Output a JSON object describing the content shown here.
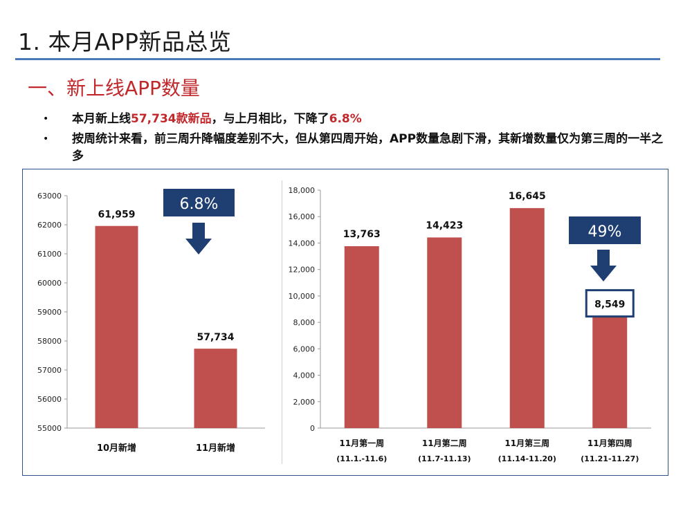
{
  "page": {
    "title": "1. 本月APP新品总览",
    "section_heading": "一、新上线APP数量",
    "bullet_marker": "•",
    "bullets": [
      {
        "prefix": "本月新上线",
        "hl1": "57,734款新品",
        "middle": "，与上月相比，下降了",
        "hl2": "6.8%"
      },
      {
        "text": "按周统计来看，前三周升降幅度差别不大，但从第四周开始，APP数量急剧下滑，其新增数量仅为第三周的一半之多"
      }
    ]
  },
  "colors": {
    "bar": "#c0504d",
    "callout": "#1f3f73",
    "accent": "#c0282c",
    "frame": "#2d4f8a"
  },
  "chart_data": [
    {
      "type": "bar",
      "categories": [
        "10月新增",
        "11月新增"
      ],
      "values": [
        61959,
        57734
      ],
      "value_labels": [
        "61,959",
        "57,734"
      ],
      "ylim": [
        55000,
        63000
      ],
      "yticks": [
        55000,
        56000,
        57000,
        58000,
        59000,
        60000,
        61000,
        62000,
        63000
      ],
      "ytick_labels": [
        "55000",
        "56000",
        "57000",
        "58000",
        "59000",
        "60000",
        "61000",
        "62000",
        "63000"
      ],
      "callout": {
        "text": "6.8%",
        "icon": "down-arrow-icon"
      }
    },
    {
      "type": "bar",
      "categories": [
        "11月第一周",
        "11月第二周",
        "11月第三周",
        "11月第四周"
      ],
      "subcategories": [
        "(11.1.-11.6)",
        "(11.7-11.13)",
        "(11.14-11.20)",
        "(11.21-11.27)"
      ],
      "values": [
        13763,
        14423,
        16645,
        8549
      ],
      "value_labels": [
        "13,763",
        "14,423",
        "16,645",
        "8,549"
      ],
      "ylim": [
        0,
        18000
      ],
      "yticks": [
        0,
        2000,
        4000,
        6000,
        8000,
        10000,
        12000,
        14000,
        16000,
        18000
      ],
      "ytick_labels": [
        "0",
        "2,000",
        "4,000",
        "6,000",
        "8,000",
        "10,000",
        "12,000",
        "14,000",
        "16,000",
        "18,000"
      ],
      "highlighted_index": 3,
      "callout": {
        "text": "49%",
        "icon": "down-arrow-icon"
      }
    }
  ]
}
